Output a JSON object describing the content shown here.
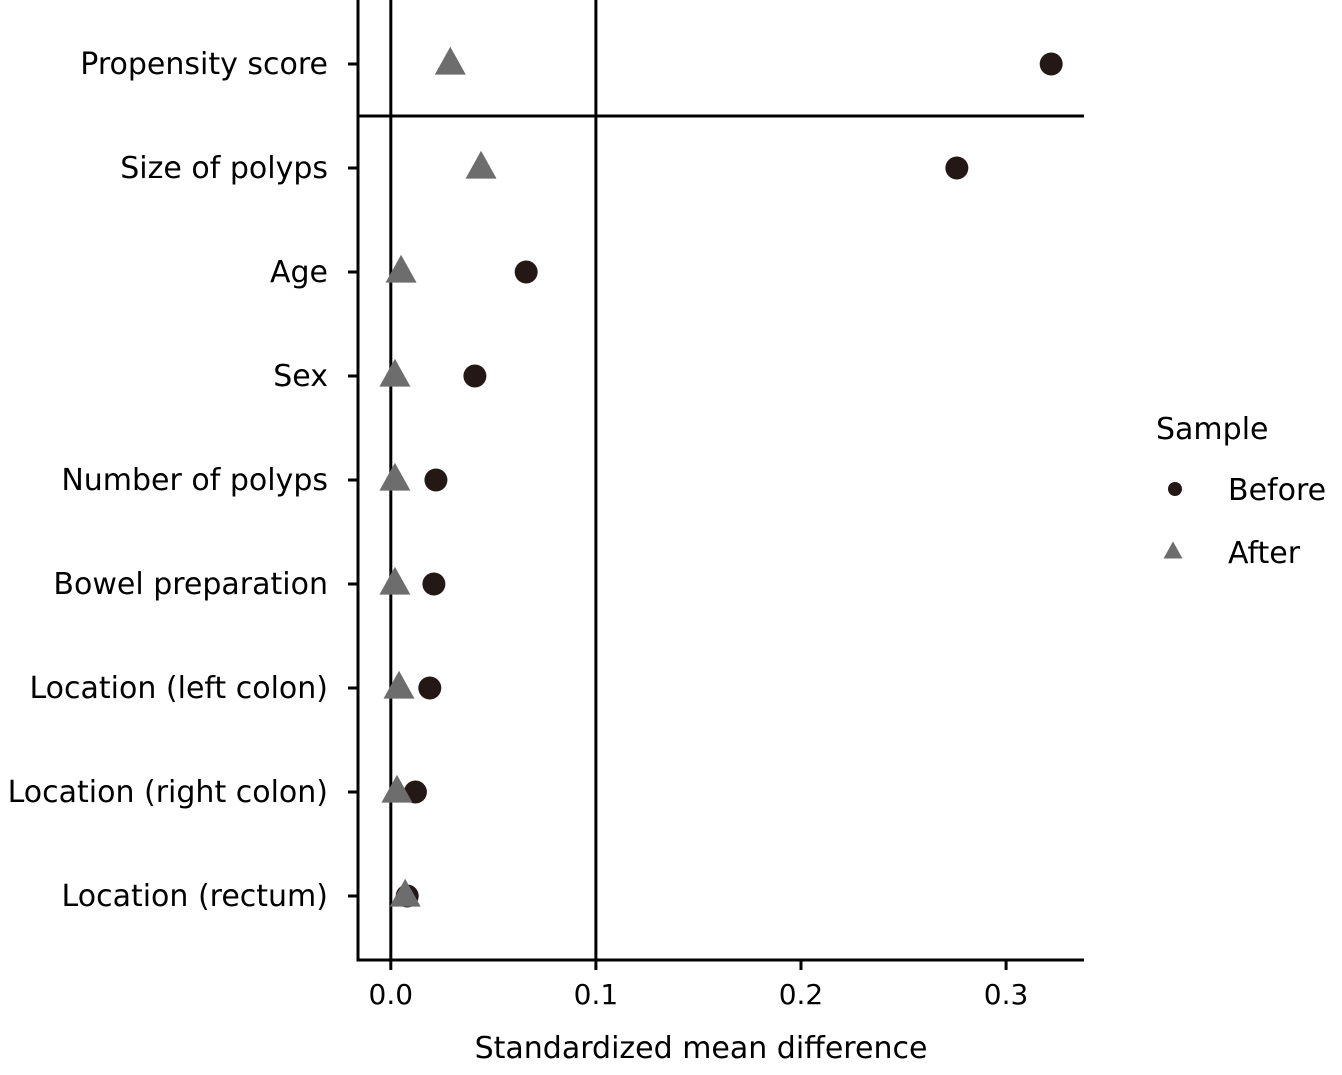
{
  "chart_data": {
    "type": "scatter",
    "title": "",
    "xlabel": "Standardized mean difference",
    "ylabel": "",
    "xlim": [
      -0.016,
      0.338
    ],
    "xticks": [
      0.0,
      0.1,
      0.2,
      0.3
    ],
    "xtick_labels": [
      "0.0",
      "0.1",
      "0.2",
      "0.3"
    ],
    "reference_lines_x": [
      0,
      0.1
    ],
    "separator_after_category": "Propensity score",
    "grid": false,
    "categories": [
      "Propensity score",
      "Size of polyps",
      "Age",
      "Sex",
      "Number of polyps",
      "Bowel preparation",
      "Location (left colon)",
      "Location (right colon)",
      "Location (rectum)"
    ],
    "series": [
      {
        "name": "Before",
        "marker": "circle",
        "color": "#231815",
        "values": [
          0.322,
          0.276,
          0.066,
          0.041,
          0.022,
          0.021,
          0.019,
          0.012,
          0.008
        ]
      },
      {
        "name": "After",
        "marker": "triangle",
        "color": "#6d6d6d",
        "values": [
          0.029,
          0.044,
          0.005,
          0.002,
          0.002,
          0.002,
          0.004,
          0.003,
          0.007
        ]
      }
    ],
    "legend": {
      "title": "Sample",
      "position": "right"
    }
  }
}
